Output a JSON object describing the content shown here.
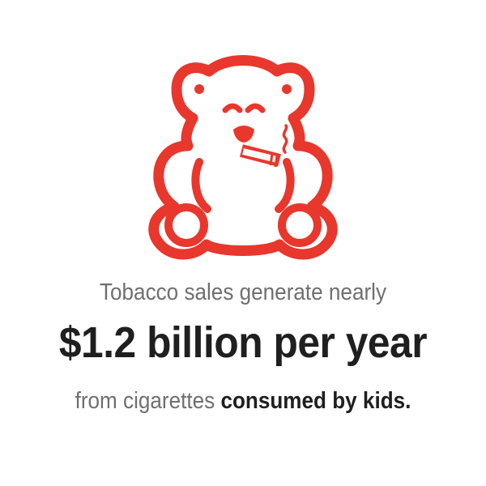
{
  "illustration": {
    "icon": "teddy-bear-smoking-icon",
    "color": "#e8372c"
  },
  "text": {
    "intro": "Tobacco sales generate nearly",
    "headline": "$1.2 billion per year",
    "outro_plain": "from cigarettes ",
    "outro_emphasis": "consumed by kids."
  }
}
